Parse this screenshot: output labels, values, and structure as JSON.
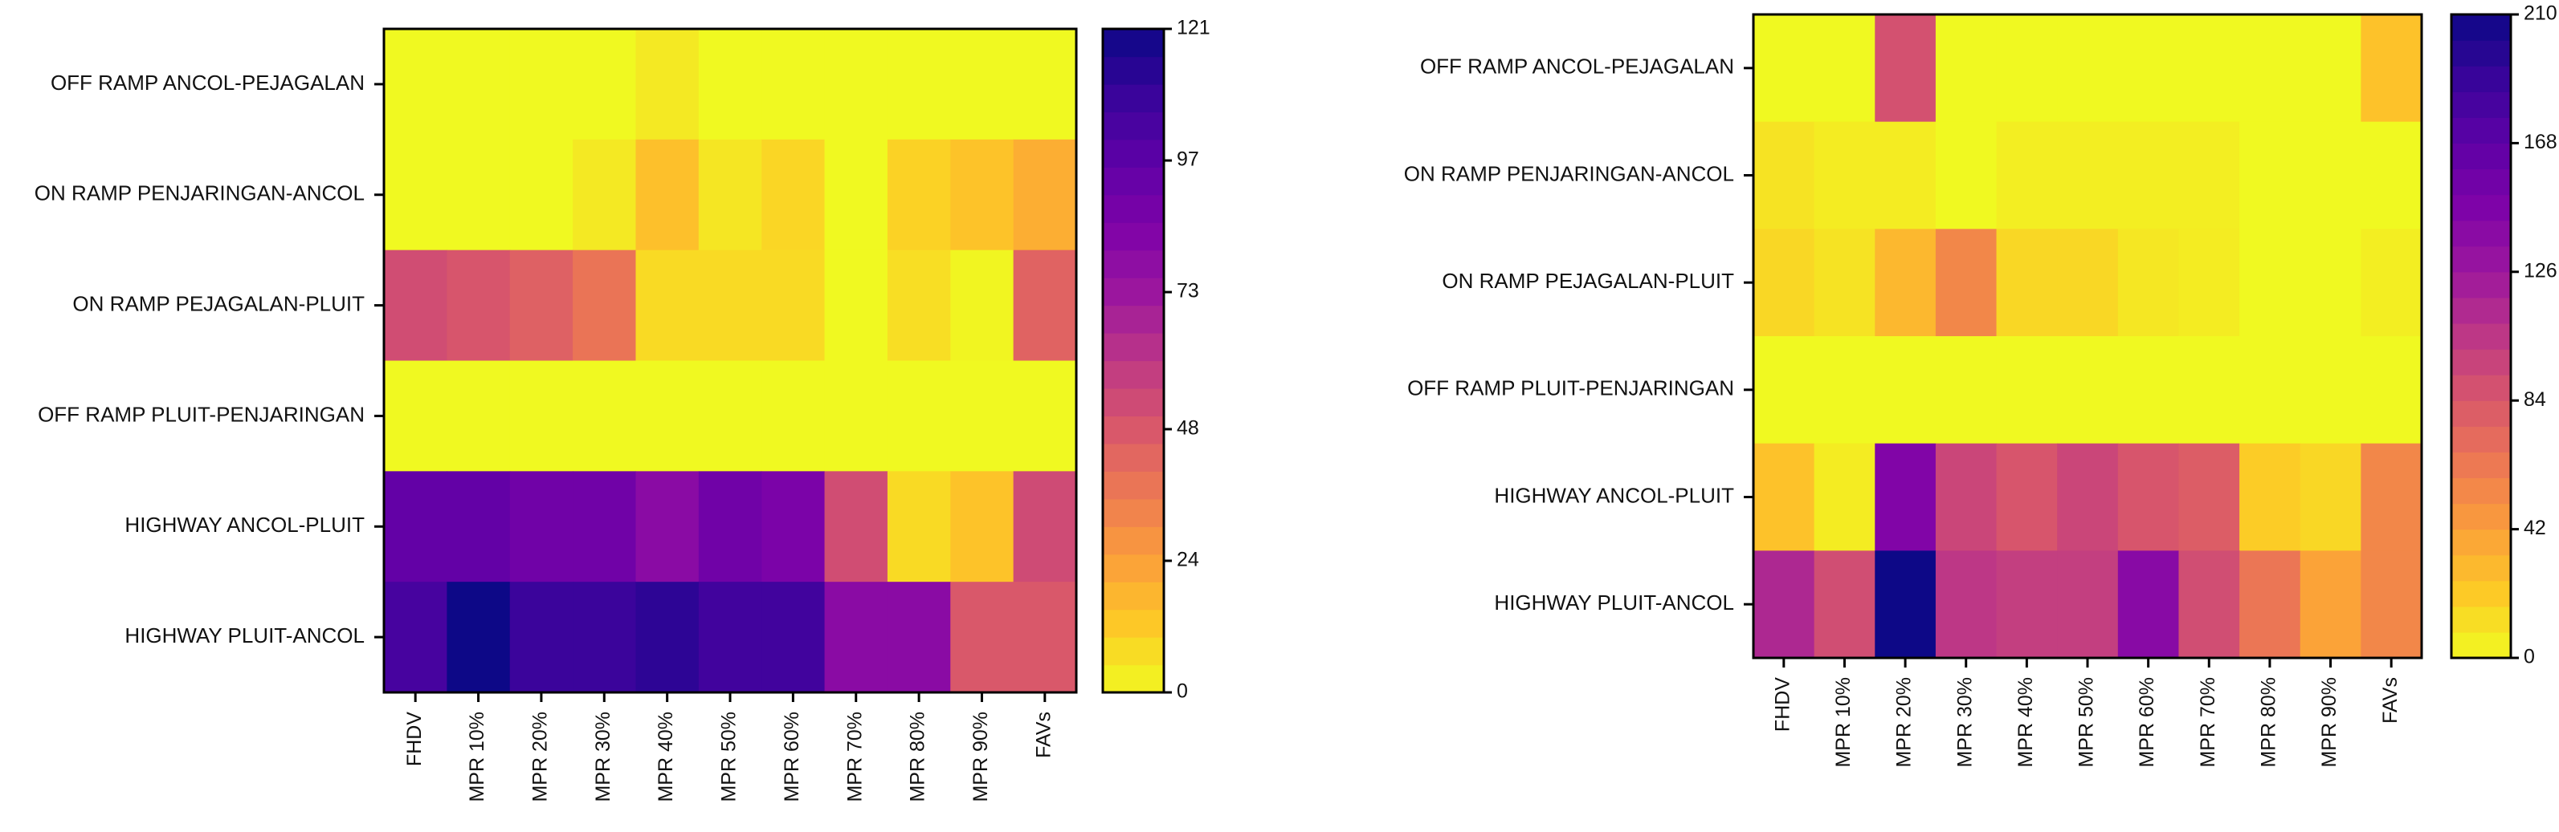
{
  "chart_data": [
    {
      "type": "heatmap",
      "rows": [
        "OFF RAMP ANCOL-PEJAGALAN",
        "ON RAMP PENJARINGAN-ANCOL",
        "ON RAMP PEJAGALAN-PLUIT",
        "OFF RAMP PLUIT-PENJARINGAN",
        "HIGHWAY ANCOL-PLUIT",
        "HIGHWAY PLUIT-ANCOL"
      ],
      "columns": [
        "FHDV",
        "MPR 10%",
        "MPR 20%",
        "MPR 30%",
        "MPR 40%",
        "MPR 50%",
        "MPR 60%",
        "MPR 70%",
        "MPR 80%",
        "MPR 90%",
        "FAVs"
      ],
      "values": [
        [
          0,
          0,
          0,
          0,
          4,
          0,
          0,
          0,
          0,
          0,
          0
        ],
        [
          0,
          0,
          0,
          4,
          15,
          5,
          9,
          0,
          10,
          14,
          20
        ],
        [
          52,
          49,
          45,
          38,
          8,
          8,
          8,
          0,
          7,
          1,
          44
        ],
        [
          0,
          0,
          0,
          0,
          0,
          0,
          0,
          0,
          0,
          0,
          0
        ],
        [
          95,
          95,
          90,
          90,
          80,
          90,
          86,
          52,
          8,
          14,
          53
        ],
        [
          104,
          121,
          108,
          108,
          112,
          106,
          106,
          80,
          80,
          48,
          48
        ]
      ],
      "colorbar": {
        "min": 0,
        "max": 121,
        "ticks": [
          0,
          24,
          48,
          73,
          97,
          121
        ]
      },
      "colormap": "plasma_r"
    },
    {
      "type": "heatmap",
      "rows": [
        "OFF RAMP ANCOL-PEJAGALAN",
        "ON RAMP PENJARINGAN-ANCOL",
        "ON RAMP PEJAGALAN-PLUIT",
        "OFF RAMP PLUIT-PENJARINGAN",
        "HIGHWAY ANCOL-PLUIT",
        "HIGHWAY PLUIT-ANCOL"
      ],
      "columns": [
        "FHDV",
        "MPR 10%",
        "MPR 20%",
        "MPR 30%",
        "MPR 40%",
        "MPR 50%",
        "MPR 60%",
        "MPR 70%",
        "MPR 80%",
        "MPR 90%",
        "FAVs"
      ],
      "values": [
        [
          0,
          0,
          88,
          0,
          0,
          0,
          0,
          0,
          0,
          0,
          25
        ],
        [
          10,
          6,
          6,
          0,
          5,
          5,
          5,
          5,
          0,
          0,
          0
        ],
        [
          15,
          10,
          30,
          55,
          15,
          15,
          8,
          6,
          0,
          0,
          5
        ],
        [
          0,
          0,
          0,
          0,
          0,
          0,
          0,
          0,
          0,
          0,
          0
        ],
        [
          25,
          6,
          145,
          95,
          85,
          95,
          85,
          80,
          20,
          15,
          55
        ],
        [
          115,
          90,
          210,
          105,
          100,
          100,
          140,
          90,
          65,
          40,
          55
        ]
      ],
      "colorbar": {
        "min": 0,
        "max": 210,
        "ticks": [
          0,
          42,
          84,
          126,
          168,
          210
        ]
      },
      "colormap": "plasma_r"
    }
  ]
}
